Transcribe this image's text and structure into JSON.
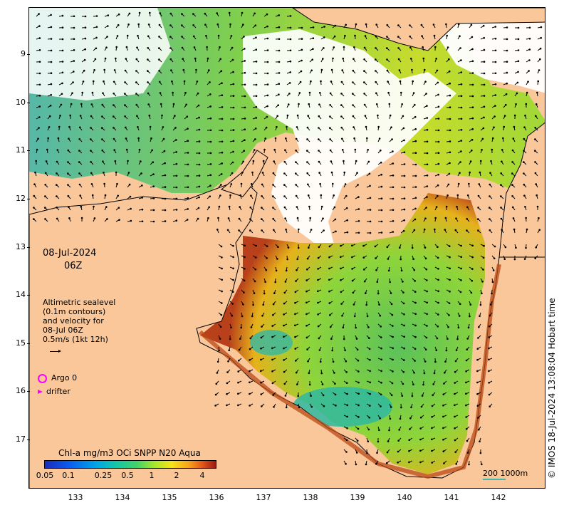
{
  "map": {
    "lat_ticks": [
      "9",
      "10",
      "11",
      "12",
      "13",
      "14",
      "15",
      "16",
      "17"
    ],
    "lon_ticks": [
      "133",
      "134",
      "135",
      "136",
      "137",
      "138",
      "139",
      "140",
      "141",
      "142"
    ],
    "land_color": "#f9c79a",
    "no_data_color": "#ffffff"
  },
  "overlay": {
    "date": "08-Jul-2024",
    "time": "06Z",
    "altimetry_lines": [
      "Altimetric sealevel",
      "(0.1m contours)",
      "and velocity for",
      "08-Jul 06Z",
      "0.5m/s (1kt 12h)"
    ]
  },
  "legend": {
    "argo_label": "Argo 0",
    "drifter_label": "drifter",
    "argo_color": "#ff00ff",
    "drifter_color": "#ff00ff"
  },
  "colorbar": {
    "title": "Chl-a mg/m3 OCi SNPP N20 Aqua",
    "labels": [
      "0.05",
      "0.1",
      "0.25",
      "0.5",
      "1",
      "2",
      "4"
    ]
  },
  "scale": {
    "label": "200  1000m",
    "color": "#3fb8b0"
  },
  "credit": "© IMOS 18-Jul-2024 13:08:04 Hobart time"
}
